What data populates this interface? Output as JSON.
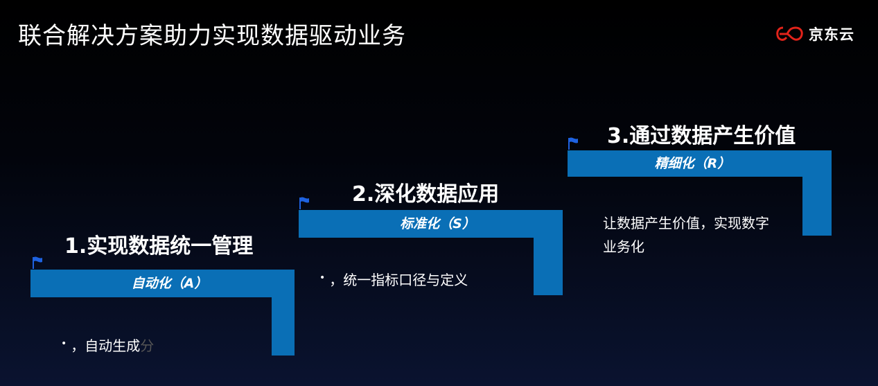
{
  "header": {
    "title": "联合解决方案助力实现数据驱动业务",
    "logo_text": "京东云"
  },
  "steps": [
    {
      "title": "1.实现数据统一管理",
      "bar_label": "自动化（A）",
      "bullet": "•",
      "desc": "，自动生成",
      "desc_tail": "分"
    },
    {
      "title": "2.深化数据应用",
      "bar_label": "标准化（S）",
      "bullet": "•",
      "desc": "，统一指标口径与定义"
    },
    {
      "title": "3.通过数据产生价值",
      "bar_label": "精细化（R）",
      "desc_line1": "让数据产生价值，实现数字",
      "desc_line2": "业务化"
    }
  ],
  "colors": {
    "bar": "#0a6fb6",
    "flag": "#1e62e0",
    "logo_red": "#e2231a"
  },
  "icons": [
    "jd-cloud-logo-icon",
    "flag-icon"
  ]
}
